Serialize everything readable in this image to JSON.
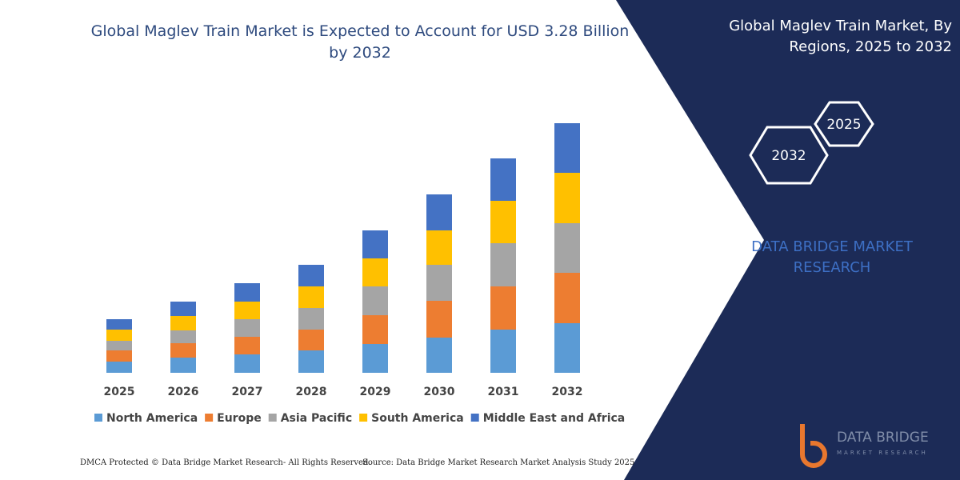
{
  "chart_data": {
    "type": "bar",
    "stacked": true,
    "title": "Global Maglev Train Market is Expected to Account for USD 3.28 Billion by 2032",
    "categories": [
      "2025",
      "2026",
      "2027",
      "2028",
      "2029",
      "2030",
      "2031",
      "2032"
    ],
    "series": [
      {
        "name": "North America",
        "color": "#5b9bd5",
        "values": [
          14,
          19,
          23,
          28,
          36,
          44,
          54,
          62
        ]
      },
      {
        "name": "Europe",
        "color": "#ed7d31",
        "values": [
          14,
          18,
          22,
          26,
          36,
          46,
          54,
          63
        ]
      },
      {
        "name": "Asia Pacific",
        "color": "#a5a5a5",
        "values": [
          12,
          16,
          22,
          27,
          36,
          45,
          54,
          62
        ]
      },
      {
        "name": "South America",
        "color": "#ffc000",
        "values": [
          14,
          18,
          22,
          27,
          35,
          43,
          53,
          63
        ]
      },
      {
        "name": "Middle East and Africa",
        "color": "#4472c4",
        "values": [
          13,
          18,
          23,
          27,
          35,
          45,
          53,
          62
        ]
      }
    ]
  },
  "panel": {
    "title": "Global Maglev Train Market, By Regions, 2025 to 2032",
    "hexagons": [
      "2025",
      "2032"
    ],
    "brand": "DATA BRIDGE MARKET RESEARCH"
  },
  "logo": {
    "name": "DATA BRIDGE",
    "sub": "MARKET RESEARCH"
  },
  "footer": {
    "dmca": "DMCA Protected © Data Bridge Market Research- All Rights Reserved.",
    "source": "Source: Data Bridge Market Research Market Analysis Study 2025"
  }
}
